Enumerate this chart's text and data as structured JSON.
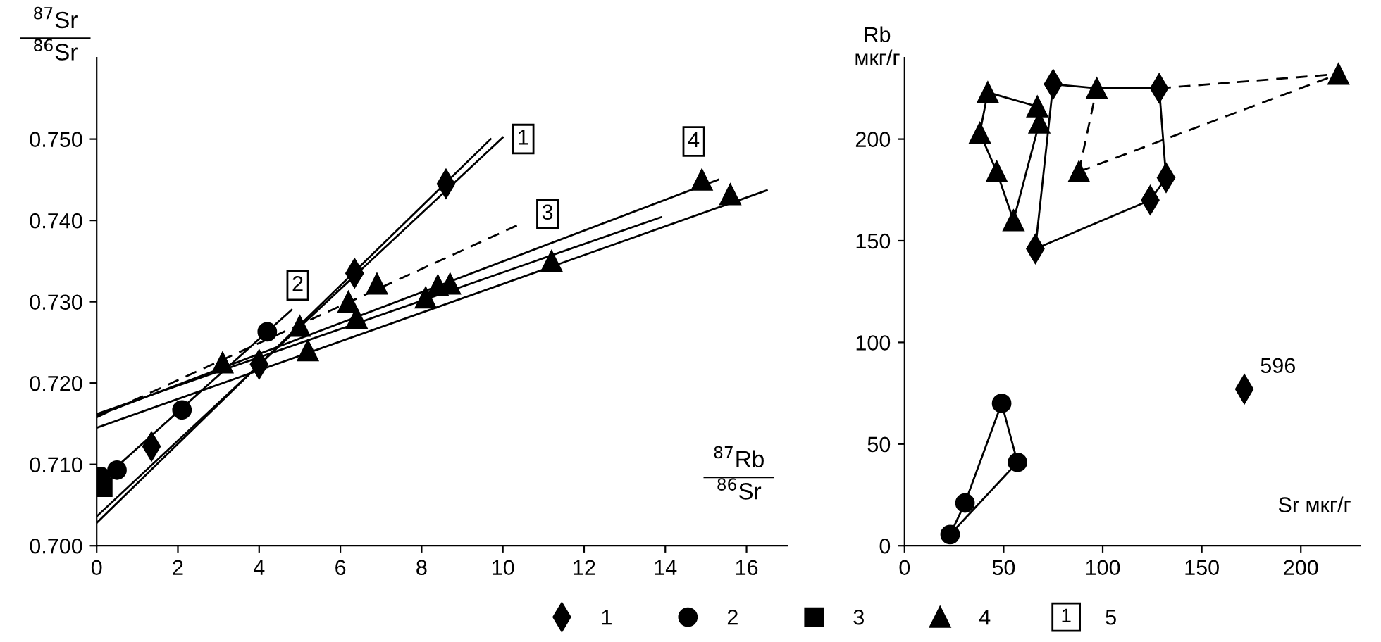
{
  "chart_data": [
    {
      "type": "scatter",
      "xlabel": "$^{87}$Rb\n$^{86}$Sr",
      "ylabel": "$^{87}$Sr\n$^{86}$Sr",
      "xlim": [
        0,
        17
      ],
      "ylim": [
        0.7,
        0.76
      ],
      "xticks": [
        0,
        2,
        4,
        6,
        8,
        10,
        12,
        14,
        16
      ],
      "yticks": [
        {
          "value": 0.7,
          "label": "0.700"
        },
        {
          "value": 0.71,
          "label": "0.710"
        },
        {
          "value": 0.72,
          "label": "0.720"
        },
        {
          "value": 0.73,
          "label": "0.730"
        },
        {
          "value": 0.74,
          "label": "0.740"
        },
        {
          "value": 0.75,
          "label": "0.750"
        }
      ],
      "grid": false,
      "legend": "bottom",
      "series": [
        {
          "name": "1",
          "type": "scatter",
          "marker": "diamond",
          "color": "#000000",
          "x": [
            1.35,
            4.0,
            6.35,
            8.6
          ],
          "values": [
            0.7122,
            0.7223,
            0.7335,
            0.7445
          ]
        },
        {
          "name": "2",
          "type": "scatter",
          "marker": "circle",
          "color": "#000000",
          "x": [
            0.1,
            0.5,
            2.1,
            4.2
          ],
          "values": [
            0.7085,
            0.7093,
            0.7167,
            0.7263
          ]
        },
        {
          "name": "3",
          "type": "scatter",
          "marker": "square",
          "color": "#000000",
          "x": [
            0.15
          ],
          "values": [
            0.7072
          ]
        },
        {
          "name": "4",
          "type": "scatter",
          "marker": "triangle",
          "color": "#000000",
          "x": [
            3.1,
            5.2,
            5.0,
            6.2,
            6.4,
            6.9,
            8.1,
            8.4,
            8.7,
            11.2,
            14.9,
            15.6
          ],
          "values": [
            0.7225,
            0.724,
            0.727,
            0.73,
            0.728,
            0.7322,
            0.7305,
            0.732,
            0.7322,
            0.735,
            0.745,
            0.7432
          ]
        },
        {
          "type": "line",
          "line_style": "solid",
          "color": "#000000",
          "x": [
            0,
            9.7
          ],
          "values": [
            0.7028,
            0.75
          ]
        },
        {
          "type": "line",
          "line_style": "solid",
          "color": "#000000",
          "x": [
            0,
            10.0
          ],
          "values": [
            0.7036,
            0.7502
          ]
        },
        {
          "type": "line",
          "line_style": "solid",
          "color": "#000000",
          "x": [
            0,
            4.8
          ],
          "values": [
            0.7075,
            0.729
          ]
        },
        {
          "type": "line",
          "line_style": "dashed",
          "color": "#000000",
          "x": [
            0,
            10.4
          ],
          "values": [
            0.7158,
            0.7395
          ]
        },
        {
          "type": "line",
          "line_style": "solid",
          "color": "#000000",
          "x": [
            0,
            15.3
          ],
          "values": [
            0.716,
            0.745
          ]
        },
        {
          "type": "line",
          "line_style": "solid",
          "color": "#000000",
          "x": [
            0,
            16.5
          ],
          "values": [
            0.7145,
            0.7437
          ]
        },
        {
          "type": "line",
          "line_style": "solid",
          "color": "#000000",
          "x": [
            0,
            13.9
          ],
          "values": [
            0.7162,
            0.7404
          ]
        }
      ],
      "annotations": [
        {
          "text": "1",
          "x": 10.5,
          "y": 0.75
        },
        {
          "text": "2",
          "x": 4.95,
          "y": 0.732
        },
        {
          "text": "3",
          "x": 11.1,
          "y": 0.7408
        },
        {
          "text": "4",
          "x": 14.7,
          "y": 0.7497
        },
        "5"
      ]
    },
    {
      "type": "scatter",
      "xlabel": "Sr мкг/г",
      "ylabel": "Rb\nмкг/г",
      "xlim": [
        0,
        230
      ],
      "ylim": [
        0,
        240
      ],
      "xticks": [
        0,
        50,
        100,
        150,
        200
      ],
      "yticks": [
        0,
        50,
        100,
        150,
        200
      ],
      "grid": false,
      "series": [
        {
          "type": "line",
          "line_style": "solid",
          "color": "#000000",
          "x": [
            42,
            67
          ],
          "values": [
            223,
            216
          ]
        },
        {
          "type": "line",
          "line_style": "solid",
          "color": "#000000",
          "x": [
            38,
            42
          ],
          "values": [
            203,
            223
          ]
        },
        {
          "type": "line",
          "line_style": "solid",
          "color": "#000000",
          "x": [
            38,
            46.5,
            55
          ],
          "values": [
            203,
            184,
            160
          ]
        },
        {
          "type": "line",
          "line_style": "solid",
          "color": "#000000",
          "x": [
            55,
            68
          ],
          "values": [
            160,
            208
          ]
        },
        {
          "type": "line",
          "line_style": "solid",
          "color": "#000000",
          "x": [
            66,
            75
          ],
          "values": [
            146,
            227
          ]
        },
        {
          "type": "line",
          "line_style": "solid",
          "color": "#000000",
          "x": [
            66,
            124,
            132
          ],
          "values": [
            146,
            170,
            181
          ]
        },
        {
          "type": "line",
          "line_style": "solid",
          "color": "#000000",
          "x": [
            128.5,
            132
          ],
          "values": [
            225,
            181
          ]
        },
        {
          "type": "line",
          "line_style": "solid",
          "color": "#000000",
          "x": [
            75,
            97,
            128.5
          ],
          "values": [
            227,
            225,
            225
          ]
        },
        {
          "type": "line",
          "line_style": "dashed",
          "color": "#000000",
          "x": [
            128.5,
            219
          ],
          "values": [
            225,
            232
          ]
        },
        {
          "type": "line",
          "line_style": "dashed",
          "color": "#000000",
          "x": [
            88,
            219
          ],
          "values": [
            184,
            232
          ]
        },
        {
          "type": "line",
          "line_style": "dashed",
          "color": "#000000",
          "x": [
            88,
            97
          ],
          "values": [
            184,
            225
          ]
        },
        {
          "type": "line",
          "line_style": "solid",
          "color": "#000000",
          "x": [
            23,
            30.5,
            49
          ],
          "values": [
            5.5,
            21,
            70
          ]
        },
        {
          "type": "line",
          "line_style": "solid",
          "color": "#000000",
          "x": [
            49,
            57
          ],
          "values": [
            70,
            41
          ]
        },
        {
          "type": "line",
          "line_style": "solid",
          "color": "#000000",
          "x": [
            23,
            57
          ],
          "values": [
            5.5,
            41
          ]
        },
        {
          "marker": "triangle",
          "color": "#000000",
          "x": [
            67,
            42,
            38,
            46.5,
            55,
            68,
            219,
            88,
            97
          ],
          "values": [
            216,
            223,
            203,
            184,
            160,
            208,
            232,
            184,
            225
          ]
        },
        {
          "marker": "diamond",
          "color": "#000000",
          "x": [
            75,
            66,
            124,
            132,
            128.5,
            171.5
          ],
          "values": [
            227,
            146,
            170,
            181,
            225,
            77
          ]
        },
        {
          "marker": "circle",
          "color": "#000000",
          "x": [
            23,
            30.5,
            49,
            57
          ],
          "values": [
            5.5,
            21,
            70,
            41
          ]
        }
      ],
      "annotations": [
        {
          "text": "596",
          "x": 171.5,
          "y": 77
        }
      ]
    }
  ]
}
